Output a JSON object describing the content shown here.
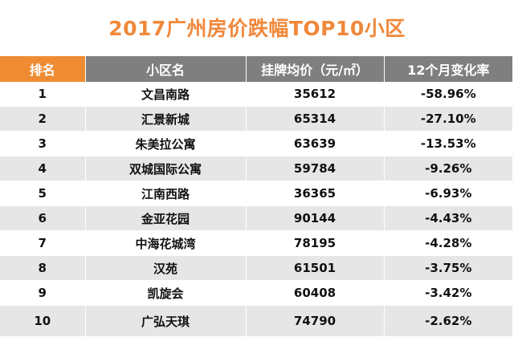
{
  "chart_data": {
    "type": "table",
    "title": "2017广州房价跌幅TOP10小区",
    "columns": [
      "排名",
      "小区名",
      "挂牌均价（元/㎡）",
      "12个月变化率"
    ],
    "rows": [
      [
        "1",
        "文昌南路",
        "35612",
        "-58.96%"
      ],
      [
        "2",
        "汇景新城",
        "65314",
        "-27.10%"
      ],
      [
        "3",
        "朱美拉公寓",
        "63639",
        "-13.53%"
      ],
      [
        "4",
        "双城国际公寓",
        "59784",
        "-9.26%"
      ],
      [
        "5",
        "江南西路",
        "36365",
        "-6.93%"
      ],
      [
        "6",
        "金亚花园",
        "90144",
        "-4.43%"
      ],
      [
        "7",
        "中海花城湾",
        "78195",
        "-4.28%"
      ],
      [
        "8",
        "汉苑",
        "61501",
        "-3.75%"
      ],
      [
        "9",
        "凯旋会",
        "60408",
        "-3.42%"
      ],
      [
        "10",
        "广弘天琪",
        "74790",
        "-2.62%"
      ]
    ],
    "colors": {
      "title": "#f0883a",
      "rank_header": "#ef8b32",
      "header": "#7f7f7f",
      "stripe": "#e6e6e6"
    }
  }
}
